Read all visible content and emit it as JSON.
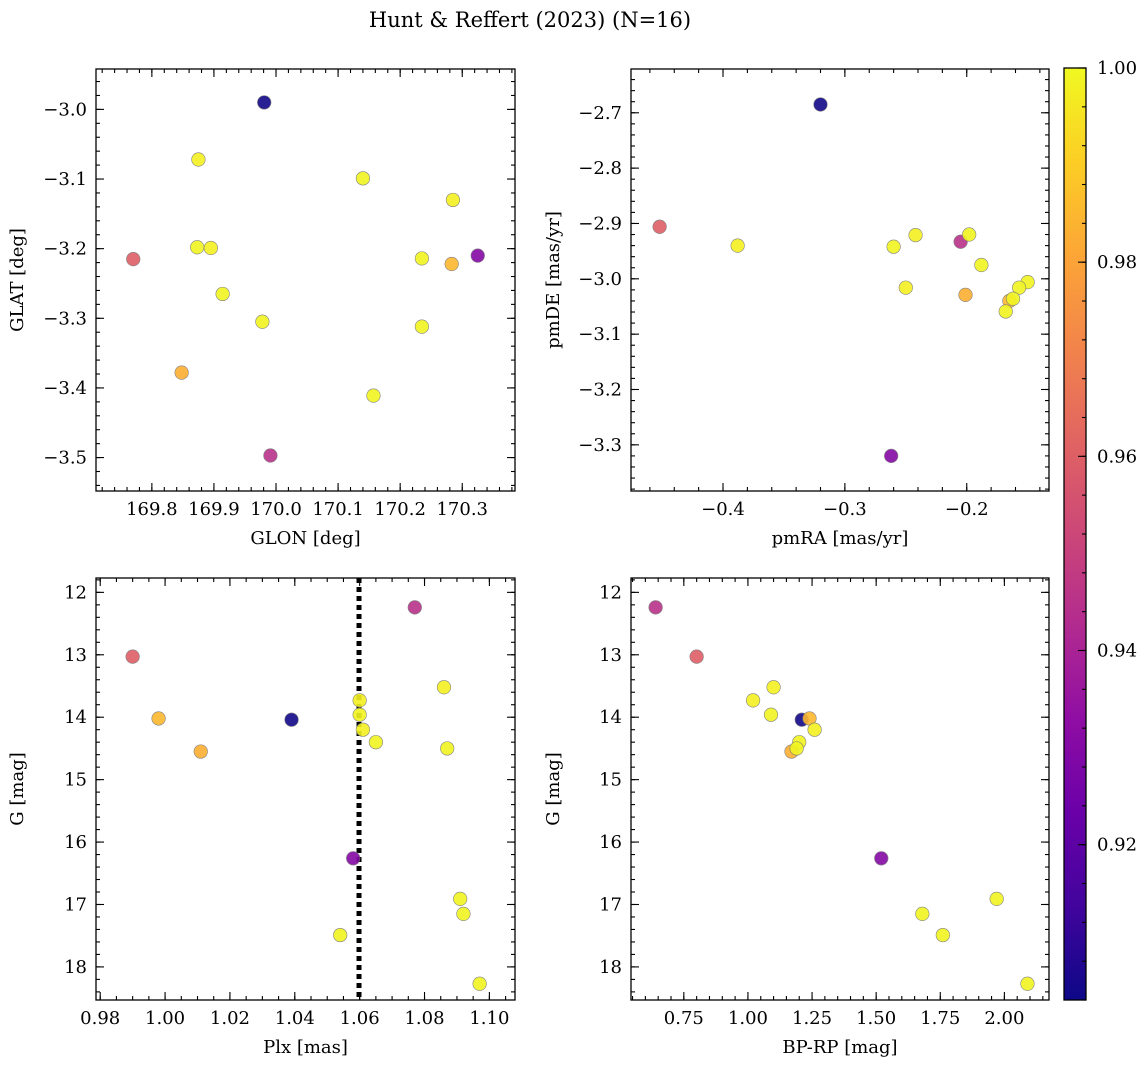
{
  "chart_data": {
    "type": "scatter",
    "title": "Hunt & Reffert (2023) (N=16)",
    "colorbar": {
      "colormap": "plasma",
      "range": [
        0.904,
        1.0
      ],
      "ticks": [
        0.92,
        0.94,
        0.96,
        0.98,
        1.0
      ],
      "tick_labels": [
        "0.92",
        "0.94",
        "0.96",
        "0.98",
        "1.00"
      ]
    },
    "stars": [
      {
        "glon": 169.981,
        "glat": -2.99,
        "pmra": -0.32,
        "pmde": -2.685,
        "plx": 1.039,
        "bprp": 1.21,
        "g": 14.04,
        "prob": 0.905
      },
      {
        "glon": 169.77,
        "glat": -3.215,
        "pmra": -0.452,
        "pmde": -2.906,
        "plx": 0.99,
        "bprp": 0.8,
        "g": 13.03,
        "prob": 0.96
      },
      {
        "glon": 169.848,
        "glat": -3.378,
        "pmra": -0.201,
        "pmde": -3.029,
        "plx": 1.011,
        "bprp": 1.17,
        "g": 14.55,
        "prob": 0.983
      },
      {
        "glon": 170.283,
        "glat": -3.222,
        "pmra": -0.165,
        "pmde": -3.04,
        "plx": 0.998,
        "bprp": 1.24,
        "g": 14.02,
        "prob": 0.985
      },
      {
        "glon": 169.991,
        "glat": -3.497,
        "pmra": -0.205,
        "pmde": -2.933,
        "plx": 1.077,
        "bprp": 0.64,
        "g": 12.24,
        "prob": 0.945
      },
      {
        "glon": 170.325,
        "glat": -3.21,
        "pmra": -0.262,
        "pmde": -3.32,
        "plx": 1.058,
        "bprp": 1.52,
        "g": 16.26,
        "prob": 0.93
      },
      {
        "glon": 169.875,
        "glat": -3.072,
        "pmra": -0.388,
        "pmde": -2.94,
        "plx": 1.06,
        "bprp": 1.02,
        "g": 13.73,
        "prob": 0.998
      },
      {
        "glon": 170.14,
        "glat": -3.099,
        "pmra": -0.26,
        "pmde": -2.942,
        "plx": 1.06,
        "bprp": 1.09,
        "g": 13.96,
        "prob": 0.999
      },
      {
        "glon": 170.285,
        "glat": -3.13,
        "pmra": -0.242,
        "pmde": -2.921,
        "plx": 1.061,
        "bprp": 1.26,
        "g": 14.2,
        "prob": 0.998
      },
      {
        "glon": 169.873,
        "glat": -3.198,
        "pmra": -0.198,
        "pmde": -2.92,
        "plx": 1.065,
        "bprp": 1.2,
        "g": 14.4,
        "prob": 0.999
      },
      {
        "glon": 169.895,
        "glat": -3.199,
        "pmra": -0.25,
        "pmde": -3.016,
        "plx": 1.086,
        "bprp": 1.1,
        "g": 13.52,
        "prob": 0.998
      },
      {
        "glon": 170.235,
        "glat": -3.214,
        "pmra": -0.188,
        "pmde": -2.975,
        "plx": 1.087,
        "bprp": 1.19,
        "g": 14.5,
        "prob": 0.999
      },
      {
        "glon": 169.914,
        "glat": -3.265,
        "pmra": -0.15,
        "pmde": -3.006,
        "plx": 1.091,
        "bprp": 1.97,
        "g": 16.91,
        "prob": 0.999
      },
      {
        "glon": 169.978,
        "glat": -3.305,
        "pmra": -0.157,
        "pmde": -3.016,
        "plx": 1.092,
        "bprp": 1.68,
        "g": 17.15,
        "prob": 0.999
      },
      {
        "glon": 170.235,
        "glat": -3.312,
        "pmra": -0.162,
        "pmde": -3.036,
        "plx": 1.054,
        "bprp": 1.76,
        "g": 17.49,
        "prob": 0.999
      },
      {
        "glon": 170.157,
        "glat": -3.411,
        "pmra": -0.168,
        "pmde": -3.059,
        "plx": 1.097,
        "bprp": 2.09,
        "g": 18.27,
        "prob": 0.999
      }
    ],
    "panels": [
      {
        "id": "glon-glat",
        "xkey": "glon",
        "ykey": "glat",
        "xlabel": "GLON [deg]",
        "ylabel": "GLAT [deg]",
        "xlim": [
          169.71,
          170.385
        ],
        "ylim": [
          -3.548,
          -2.942
        ],
        "y_inverted": false,
        "xticks": [
          169.8,
          169.9,
          170.0,
          170.1,
          170.2,
          170.3
        ],
        "xtick_labels": [
          "169.8",
          "169.9",
          "170.0",
          "170.1",
          "170.2",
          "170.3"
        ],
        "yticks": [
          -3.5,
          -3.4,
          -3.3,
          -3.2,
          -3.1,
          -3.0
        ],
        "ytick_labels": [
          "−3.5",
          "−3.4",
          "−3.3",
          "−3.2",
          "−3.1",
          "−3.0"
        ],
        "vline": null
      },
      {
        "id": "pmra-pmde",
        "xkey": "pmra",
        "ykey": "pmde",
        "xlabel": "pmRA [mas/yr]",
        "ylabel": "pmDE [mas/yr]",
        "xlim": [
          -0.4755,
          -0.1325
        ],
        "ylim": [
          -3.3834,
          -2.6209
        ],
        "y_inverted": false,
        "xticks": [
          -0.4,
          -0.3,
          -0.2
        ],
        "xtick_labels": [
          "−0.4",
          "−0.3",
          "−0.2"
        ],
        "yticks": [
          -3.3,
          -3.2,
          -3.1,
          -3.0,
          -2.9,
          -2.8,
          -2.7
        ],
        "ytick_labels": [
          "−3.3",
          "−3.2",
          "−3.1",
          "−3.0",
          "−2.9",
          "−2.8",
          "−2.7"
        ],
        "vline": null
      },
      {
        "id": "plx-g",
        "xkey": "plx",
        "ykey": "g",
        "xlabel": "Plx [mas]",
        "ylabel": "G [mag]",
        "xlim": [
          0.9787,
          1.1079
        ],
        "ylim": [
          18.53,
          11.77
        ],
        "y_inverted": true,
        "xticks": [
          0.98,
          1.0,
          1.02,
          1.04,
          1.06,
          1.08,
          1.1
        ],
        "xtick_labels": [
          "0.98",
          "1.00",
          "1.02",
          "1.04",
          "1.06",
          "1.08",
          "1.10"
        ],
        "yticks": [
          12,
          13,
          14,
          15,
          16,
          17,
          18
        ],
        "ytick_labels": [
          "12",
          "13",
          "14",
          "15",
          "16",
          "17",
          "18"
        ],
        "vline": 1.0598
      },
      {
        "id": "bprp-g",
        "xkey": "bprp",
        "ykey": "g",
        "xlabel": "BP-RP [mag]",
        "ylabel": "G [mag]",
        "xlim": [
          0.544,
          2.174
        ],
        "ylim": [
          18.53,
          11.77
        ],
        "y_inverted": true,
        "xticks": [
          0.75,
          1.0,
          1.25,
          1.5,
          1.75,
          2.0
        ],
        "xtick_labels": [
          "0.75",
          "1.00",
          "1.25",
          "1.50",
          "1.75",
          "2.00"
        ],
        "yticks": [
          12,
          13,
          14,
          15,
          16,
          17,
          18
        ],
        "ytick_labels": [
          "12",
          "13",
          "14",
          "15",
          "16",
          "17",
          "18"
        ],
        "vline": null
      }
    ]
  }
}
